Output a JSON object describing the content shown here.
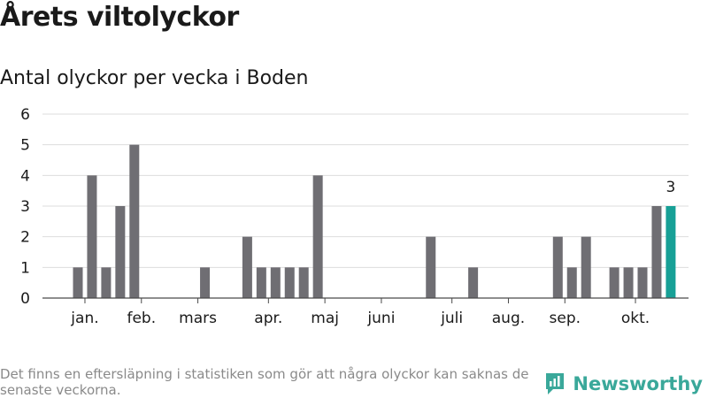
{
  "header": {
    "title": "Årets viltolyckor",
    "subtitle": "Antal olyckor per vecka i Boden"
  },
  "footer": {
    "note": "Det finns en eftersläpning i statistiken som gör att några olyckor kan saknas de senaste veckorna.",
    "brand": "Newsworthy"
  },
  "colors": {
    "bar": "#6f6e73",
    "highlight": "#17a096",
    "grid": "#dddddd",
    "axis": "#4a4a4a",
    "text": "#1a1a1a",
    "brand": "#3aa89a"
  },
  "chart_data": {
    "type": "bar",
    "title": "Antal olyckor per vecka i Boden",
    "xlabel": "",
    "ylabel": "",
    "ylim": [
      0,
      6
    ],
    "yticks": [
      0,
      1,
      2,
      3,
      4,
      5,
      6
    ],
    "grid": true,
    "weeks": [
      1,
      2,
      3,
      4,
      5,
      6,
      7,
      8,
      9,
      10,
      11,
      12,
      13,
      14,
      15,
      16,
      17,
      18,
      19,
      20,
      21,
      22,
      23,
      24,
      25,
      26,
      27,
      28,
      29,
      30,
      31,
      32,
      33,
      34,
      35,
      36,
      37,
      38,
      39,
      40,
      41,
      42,
      43
    ],
    "values": [
      1,
      4,
      1,
      3,
      5,
      0,
      0,
      0,
      0,
      1,
      0,
      0,
      2,
      1,
      1,
      1,
      1,
      4,
      0,
      0,
      0,
      0,
      0,
      0,
      0,
      2,
      0,
      0,
      1,
      0,
      0,
      0,
      0,
      0,
      2,
      1,
      2,
      0,
      1,
      1,
      1,
      3,
      3
    ],
    "highlight_index": 42,
    "data_label": "3",
    "month_ticks": [
      {
        "label": "jan.",
        "week": 1.5
      },
      {
        "label": "feb.",
        "week": 5.5
      },
      {
        "label": "mars",
        "week": 9.5
      },
      {
        "label": "apr.",
        "week": 14.5
      },
      {
        "label": "maj",
        "week": 18.5
      },
      {
        "label": "juni",
        "week": 22.5
      },
      {
        "label": "juli",
        "week": 27.5
      },
      {
        "label": "aug.",
        "week": 31.5
      },
      {
        "label": "sep.",
        "week": 35.5
      },
      {
        "label": "okt.",
        "week": 40.5
      }
    ]
  }
}
